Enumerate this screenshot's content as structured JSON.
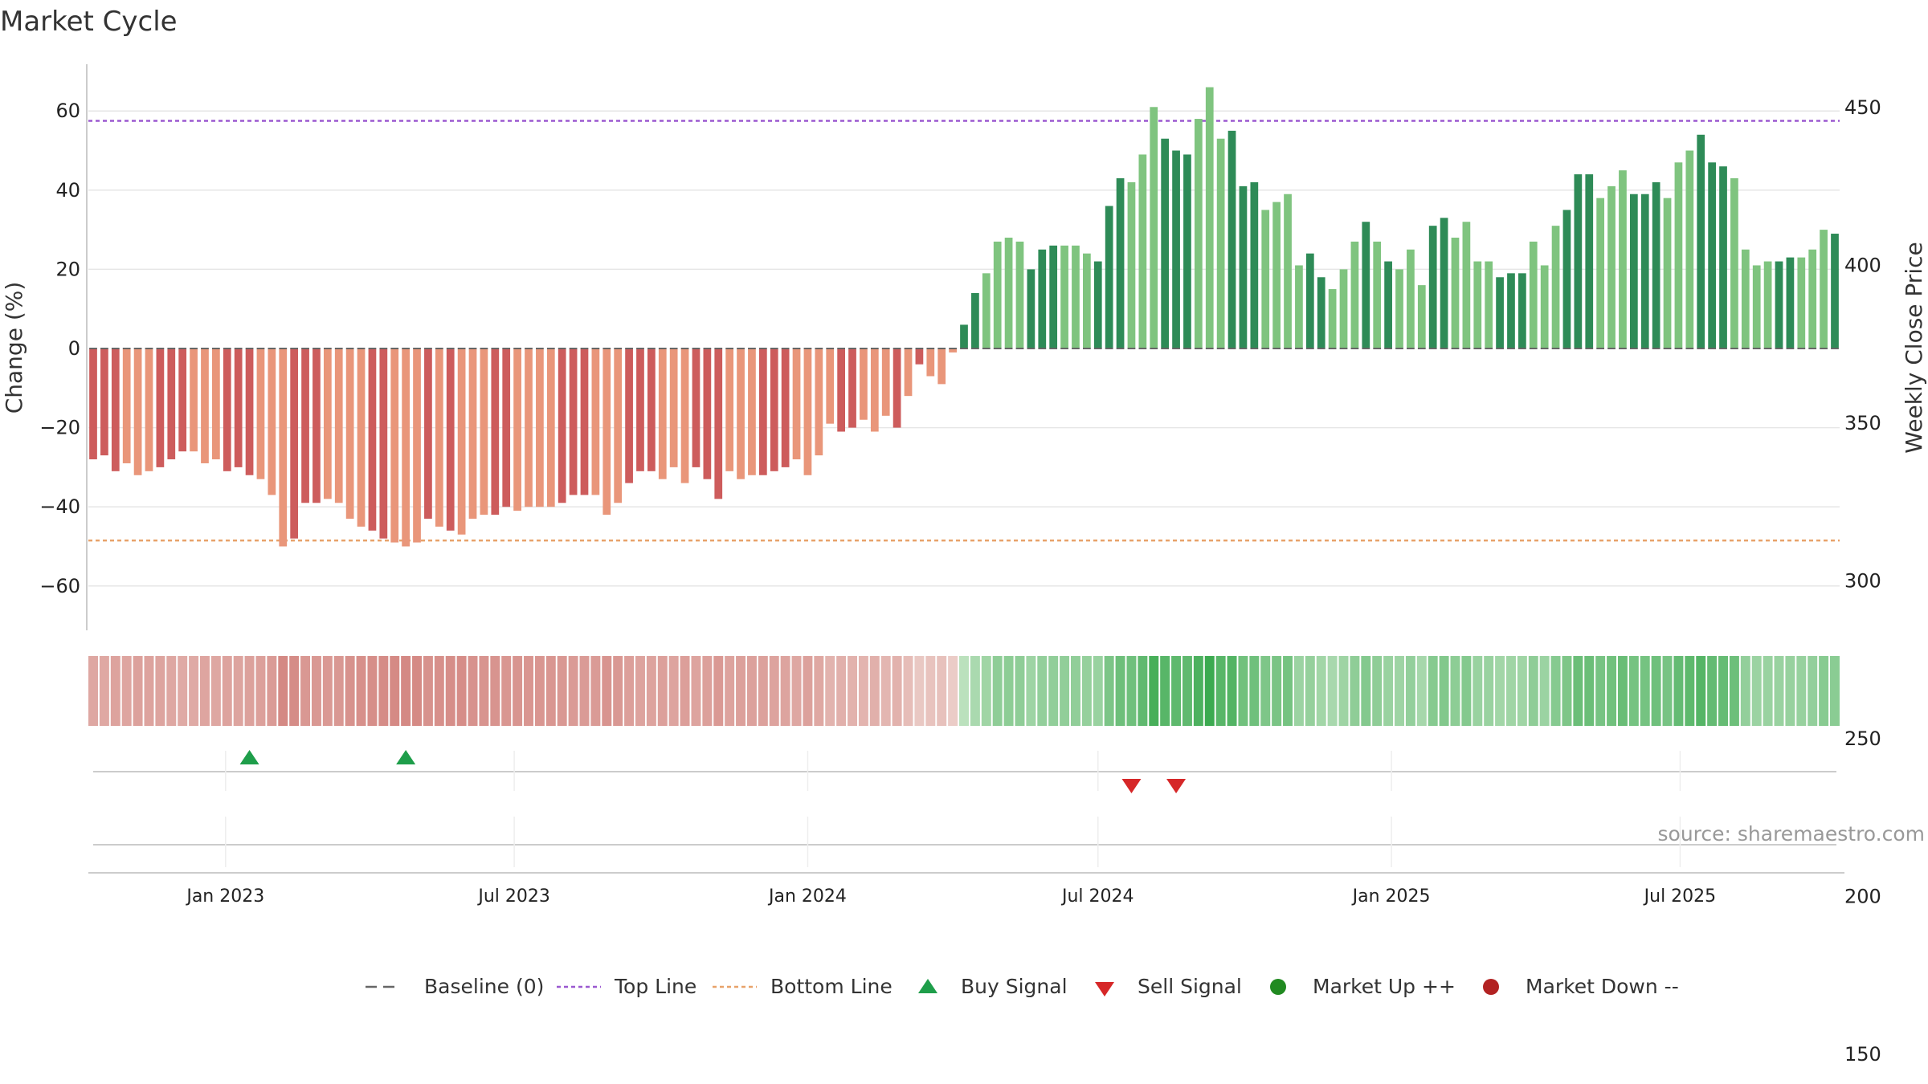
{
  "chart_data": {
    "type": "bar",
    "title": "Market Cycle",
    "ylabel_left": "Change (%)",
    "ylabel_right": "Weekly Close Price",
    "source": "source: sharemaestro.com",
    "yticks_left": [
      "60",
      "40",
      "20",
      "0",
      "−20",
      "−40",
      "−60"
    ],
    "yticks_left_values": [
      60,
      40,
      20,
      0,
      -20,
      -40,
      -60
    ],
    "yticks_right": [
      "450",
      "400",
      "350",
      "300",
      "250",
      "200",
      "150"
    ],
    "yticks_right_values": [
      450,
      400,
      350,
      300,
      250,
      200,
      150
    ],
    "ylim_left": [
      -72,
      72
    ],
    "top_line": 57.5,
    "bottom_line": -48.5,
    "x_start": "2022-10-10",
    "xticks": [
      {
        "label": "Jan 2023",
        "date": "2023-01-01"
      },
      {
        "label": "Jul 2023",
        "date": "2023-07-01"
      },
      {
        "label": "Jan 2024",
        "date": "2024-01-01"
      },
      {
        "label": "Jul 2024",
        "date": "2024-07-01"
      },
      {
        "label": "Jan 2025",
        "date": "2025-01-01"
      },
      {
        "label": "Jul 2025",
        "date": "2025-07-01"
      }
    ],
    "values": [
      -28,
      -27,
      -31,
      -29,
      -32,
      -31,
      -30,
      -28,
      -26,
      -26,
      -29,
      -28,
      -31,
      -30,
      -32,
      -33,
      -37,
      -50,
      -48,
      -39,
      -39,
      -38,
      -39,
      -43,
      -45,
      -46,
      -48,
      -49,
      -50,
      -49,
      -43,
      -45,
      -46,
      -47,
      -43,
      -42,
      -42,
      -40,
      -41,
      -40,
      -40,
      -40,
      -39,
      -37,
      -37,
      -37,
      -42,
      -39,
      -34,
      -31,
      -31,
      -33,
      -30,
      -34,
      -30,
      -33,
      -38,
      -31,
      -33,
      -32,
      -32,
      -31,
      -30,
      -28,
      -32,
      -27,
      -19,
      -21,
      -20,
      -18,
      -21,
      -17,
      -20,
      -12,
      -4,
      -7,
      -9,
      -1,
      6,
      14,
      19,
      27,
      28,
      27,
      20,
      25,
      26,
      26,
      26,
      24,
      22,
      36,
      43,
      42,
      49,
      61,
      53,
      50,
      49,
      58,
      66,
      53,
      55,
      41,
      42,
      35,
      37,
      39,
      21,
      24,
      18,
      15,
      20,
      27,
      32,
      27,
      22,
      20,
      25,
      16,
      31,
      33,
      28,
      32,
      22,
      22,
      18,
      19,
      19,
      27,
      21,
      31,
      35,
      44,
      44,
      38,
      41,
      45,
      39,
      39,
      42,
      38,
      47,
      50,
      54,
      47,
      46,
      43,
      25,
      21,
      22,
      22,
      23,
      23,
      25,
      30,
      29
    ],
    "buy_signals": [
      "2023-01-16",
      "2023-04-24"
    ],
    "sell_signals": [
      "2024-07-22",
      "2024-08-19"
    ],
    "legend": [
      {
        "label": "Baseline (0)",
        "symbol": "dash-line",
        "color": "#666666"
      },
      {
        "label": "Top Line",
        "symbol": "dot-line",
        "color": "#9b59d0"
      },
      {
        "label": "Bottom Line",
        "symbol": "dot-line",
        "color": "#e8a26a"
      },
      {
        "label": "Buy Signal",
        "symbol": "triangle-up",
        "color": "#1e9e4a"
      },
      {
        "label": "Sell Signal",
        "symbol": "triangle-down",
        "color": "#d62728"
      },
      {
        "label": "Market Up ++",
        "symbol": "circle",
        "color": "#218a21"
      },
      {
        "label": "Market Down --",
        "symbol": "circle",
        "color": "#b22222"
      }
    ],
    "colors": {
      "down_dark": "#cd5c5c",
      "down_light": "#e9967a",
      "up_dark": "#2e8b57",
      "up_light": "#7fc47f",
      "top_line": "#9b59d0",
      "bottom_line": "#e8a26a",
      "grid": "#e6e6e6"
    }
  }
}
